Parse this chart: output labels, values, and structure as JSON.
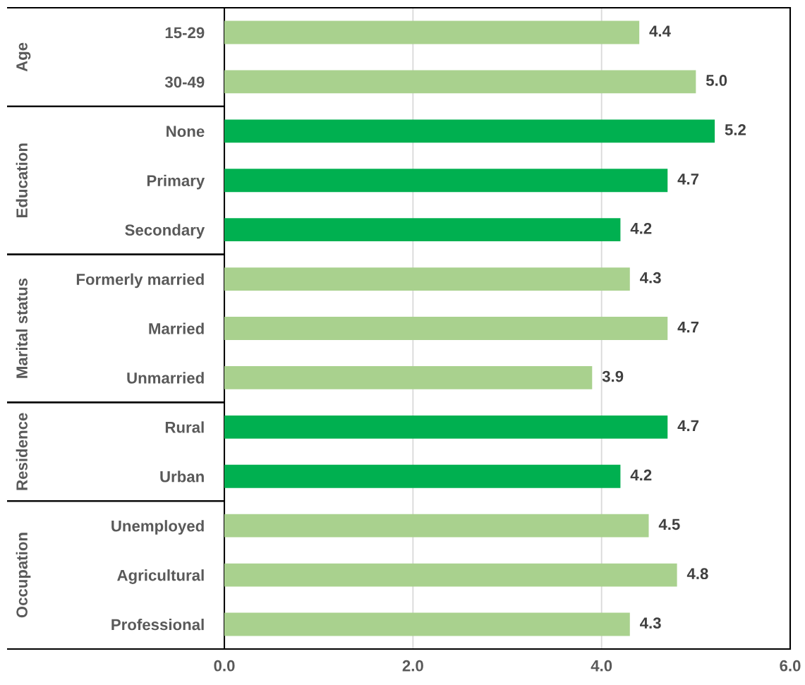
{
  "chart_data": {
    "type": "bar",
    "orientation": "horizontal",
    "categories": [
      "15-29",
      "30-49",
      "None",
      "Primary",
      "Secondary",
      "Formerly married",
      "Married",
      "Unmarried",
      "Rural",
      "Urban",
      "Unemployed",
      "Agricultural",
      "Professional"
    ],
    "values": [
      4.4,
      5.0,
      5.2,
      4.7,
      4.2,
      4.3,
      4.7,
      3.9,
      4.7,
      4.2,
      4.5,
      4.8,
      4.3
    ],
    "value_labels": [
      "4.4",
      "5.0",
      "5.2",
      "4.7",
      "4.2",
      "4.3",
      "4.7",
      "3.9",
      "4.7",
      "4.2",
      "4.5",
      "4.8",
      "4.3"
    ],
    "colors": [
      "#a9d18e",
      "#a9d18e",
      "#00b050",
      "#00b050",
      "#00b050",
      "#a9d18e",
      "#a9d18e",
      "#a9d18e",
      "#00b050",
      "#00b050",
      "#a9d18e",
      "#a9d18e",
      "#a9d18e"
    ],
    "xlim": [
      0,
      6
    ],
    "xticks": [
      {
        "value": 0,
        "label": "0.0"
      },
      {
        "value": 2,
        "label": "2.0"
      },
      {
        "value": 4,
        "label": "4.0"
      },
      {
        "value": 6,
        "label": "6.0"
      }
    ],
    "grid": "x",
    "annotations": [
      "Age",
      "Education",
      "Marital status",
      "Residence",
      "Occupation"
    ]
  }
}
